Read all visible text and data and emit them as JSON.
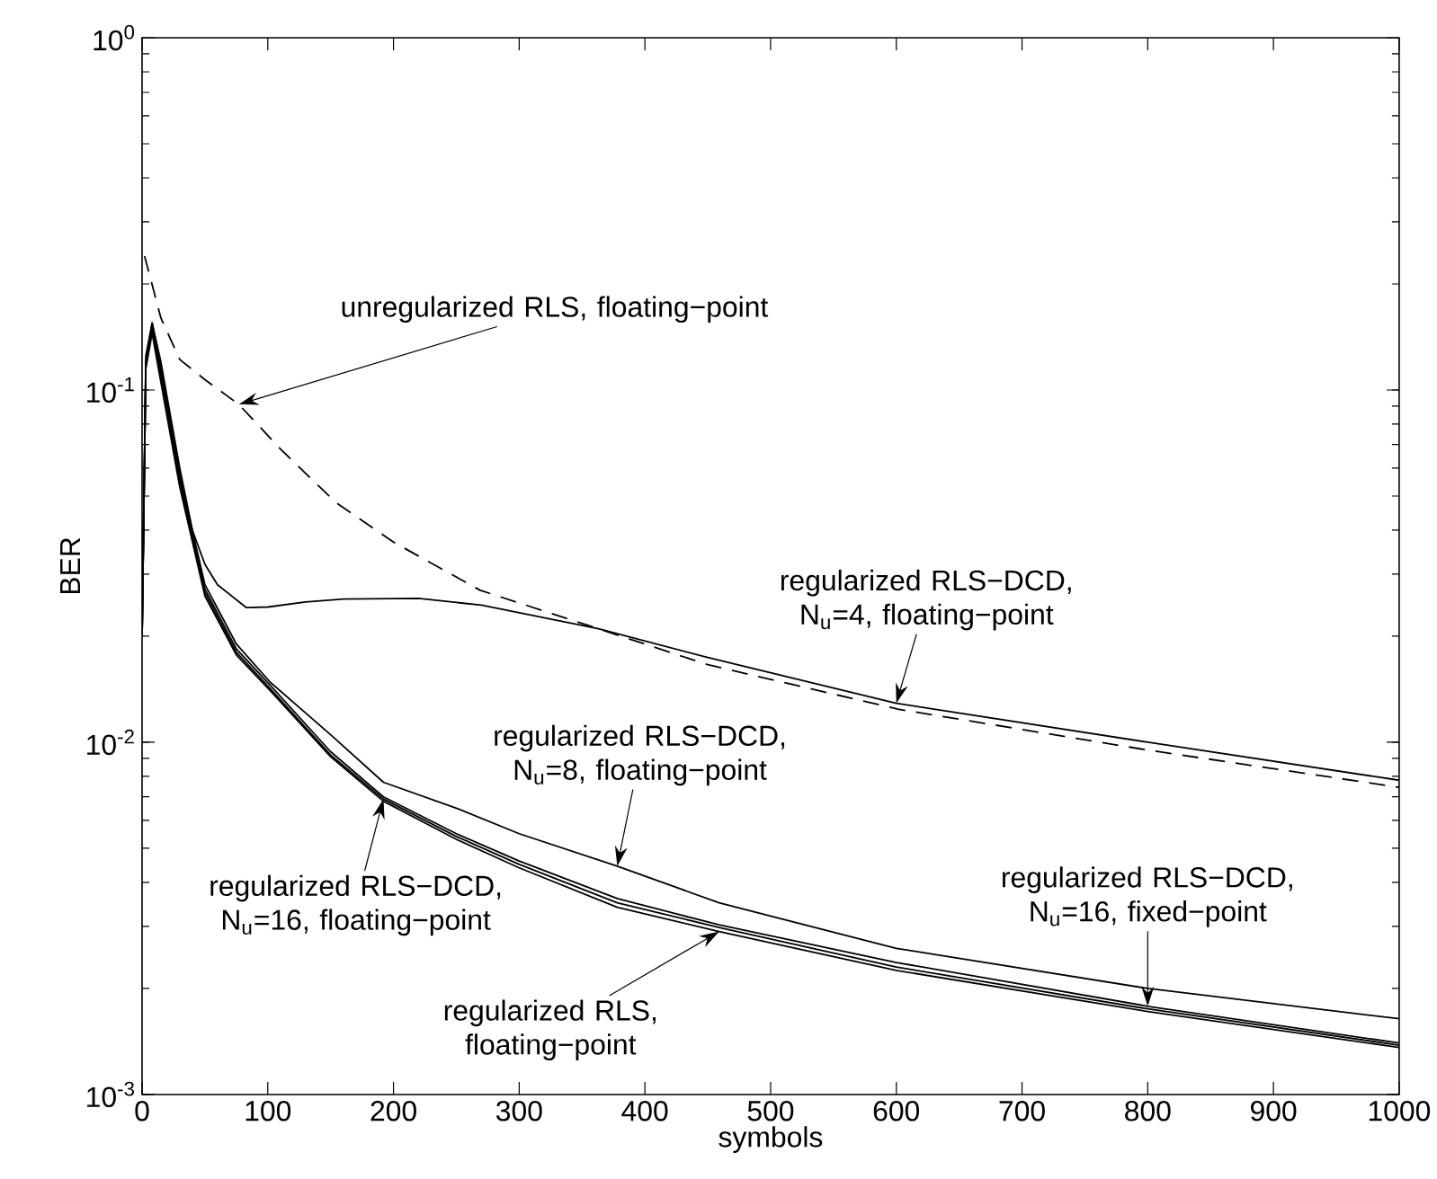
{
  "chart_data": {
    "type": "line",
    "xlabel": "symbols",
    "ylabel": "BER",
    "log": "y",
    "xlim": [
      0,
      1000
    ],
    "xticks": [
      0,
      100,
      200,
      300,
      400,
      500,
      600,
      700,
      800,
      900,
      1000
    ],
    "ylim": [
      0.001,
      1
    ],
    "yticks": [
      {
        "value": 0.001,
        "label": "10$^{-3}$"
      },
      {
        "value": 0.01,
        "label": "10$^{-2}$"
      },
      {
        "value": 0.1,
        "label": "10$^{-1}$"
      },
      {
        "value": 1,
        "label": "10$^{0}$"
      }
    ],
    "series": [
      {
        "color": "#000000",
        "line_style": "dashed",
        "x": [
          2,
          15,
          30,
          50,
          77,
          110,
          154,
          200,
          269,
          363,
          450,
          602,
          800,
          1000
        ],
        "values": [
          0.24,
          0.16,
          0.122,
          0.107,
          0.091,
          0.068,
          0.048,
          0.037,
          0.027,
          0.021,
          0.0166,
          0.0124,
          0.0095,
          0.00745
        ]
      },
      {
        "color": "#000000",
        "line_style": "solid",
        "x": [
          0,
          3,
          8,
          15,
          20,
          30,
          40,
          50,
          60,
          83,
          100,
          130,
          160,
          220,
          270,
          363,
          450,
          600,
          800,
          1000
        ],
        "values": [
          0.02,
          0.12,
          0.155,
          0.12,
          0.095,
          0.06,
          0.04,
          0.032,
          0.028,
          0.0241,
          0.0242,
          0.025,
          0.0255,
          0.0256,
          0.0245,
          0.021,
          0.0174,
          0.0129,
          0.01,
          0.0078
        ]
      },
      {
        "color": "#000000",
        "line_style": "solid",
        "x": [
          0,
          3,
          8,
          15,
          30,
          50,
          75,
          102,
          150,
          192,
          250,
          300,
          378,
          459,
          600,
          800,
          1000
        ],
        "values": [
          0.02,
          0.12,
          0.15,
          0.112,
          0.057,
          0.028,
          0.019,
          0.0148,
          0.0105,
          0.0077,
          0.0065,
          0.0055,
          0.00445,
          0.0035,
          0.0026,
          0.002,
          0.00164
        ]
      },
      {
        "color": "#000000",
        "line_style": "solid",
        "x": [
          0,
          3,
          8,
          15,
          30,
          50,
          75,
          102,
          150,
          192,
          250,
          300,
          378,
          459,
          600,
          800,
          1000
        ],
        "values": [
          0.02,
          0.12,
          0.15,
          0.11,
          0.055,
          0.0266,
          0.018,
          0.0142,
          0.0092,
          0.0069,
          0.0054,
          0.0045,
          0.0035,
          0.00298,
          0.0023,
          0.00175,
          0.00138
        ]
      },
      {
        "color": "#000000",
        "line_style": "solid",
        "x": [
          0,
          3,
          8,
          15,
          30,
          50,
          75,
          102,
          150,
          192,
          250,
          300,
          378,
          459,
          600,
          800,
          1000
        ],
        "values": [
          0.02,
          0.115,
          0.145,
          0.105,
          0.053,
          0.026,
          0.0177,
          0.014,
          0.0091,
          0.0068,
          0.0053,
          0.0044,
          0.0034,
          0.0029,
          0.00225,
          0.00172,
          0.00136
        ]
      },
      {
        "color": "#000000",
        "line_style": "solid",
        "x": [
          0,
          3,
          8,
          15,
          30,
          50,
          75,
          102,
          150,
          192,
          250,
          300,
          378,
          459,
          600,
          800,
          1000
        ],
        "values": [
          0.02,
          0.125,
          0.155,
          0.115,
          0.057,
          0.0272,
          0.0184,
          0.0145,
          0.0094,
          0.007,
          0.0055,
          0.0046,
          0.0036,
          0.00303,
          0.00237,
          0.00178,
          0.0014
        ]
      }
    ],
    "annotations": [
      {
        "text": "unregularized RLS, floating−point",
        "x": 77,
        "y": 0.091
      },
      {
        "text": "regularized RLS−DCD, N$_{u}$=4, floating−point",
        "x": 600,
        "y": 0.0129
      },
      {
        "text": "regularized RLS−DCD, N$_{u}$=8, floating−point",
        "x": 378,
        "y": 0.00445
      },
      {
        "text": "regularized RLS−DCD, N$_{u}$=16, floating−point",
        "x": 192,
        "y": 0.0069
      },
      {
        "text": "regularized RLS, floating−point",
        "x": 459,
        "y": 0.0029
      },
      {
        "text": "regularized RLS−DCD, N$_{u}$=16, fixed−point",
        "x": 800,
        "y": 0.00178
      }
    ]
  }
}
